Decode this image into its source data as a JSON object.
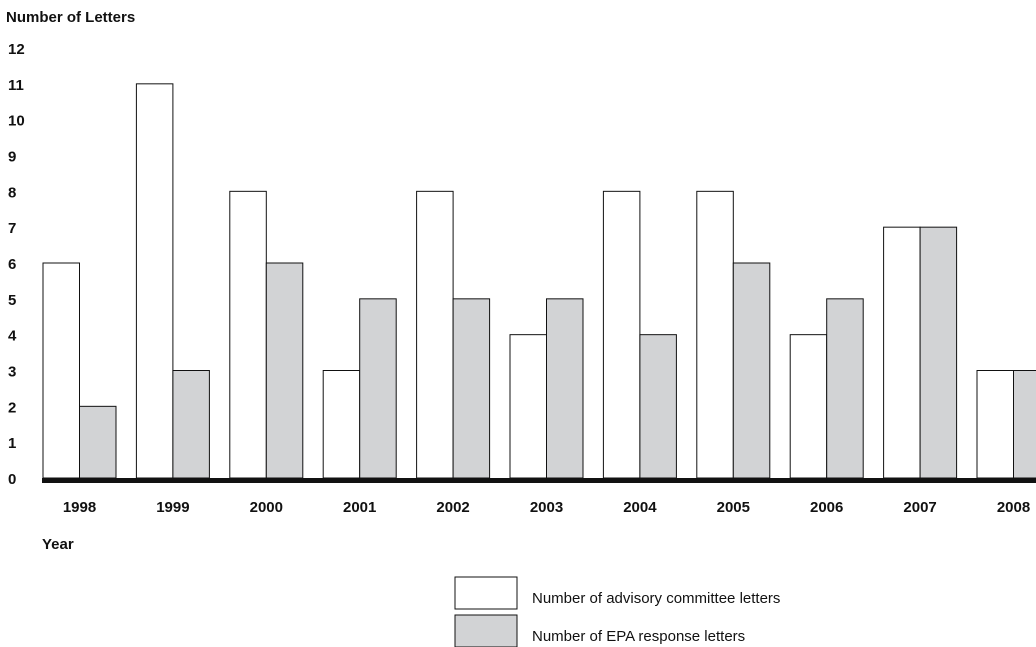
{
  "chart_data": {
    "type": "bar",
    "ylabel": "Number of Letters",
    "xlabel": "Year",
    "categories": [
      "1998",
      "1999",
      "2000",
      "2001",
      "2002",
      "2003",
      "2004",
      "2005",
      "2006",
      "2007",
      "2008"
    ],
    "yticks": [
      "0",
      "1",
      "2",
      "3",
      "4",
      "5",
      "6",
      "7",
      "8",
      "9",
      "10",
      "11",
      "12"
    ],
    "ylim": [
      0,
      12
    ],
    "grid": false,
    "legend_position": "bottom-center",
    "series": [
      {
        "name": "Number of advisory committee letters",
        "color": "#ffffff",
        "values": [
          6,
          11,
          8,
          3,
          8,
          4,
          8,
          8,
          4,
          7,
          3
        ]
      },
      {
        "name": "Number of EPA response letters",
        "color": "#d2d3d5",
        "values": [
          2,
          3,
          6,
          5,
          5,
          5,
          4,
          6,
          5,
          7,
          3
        ]
      }
    ]
  }
}
